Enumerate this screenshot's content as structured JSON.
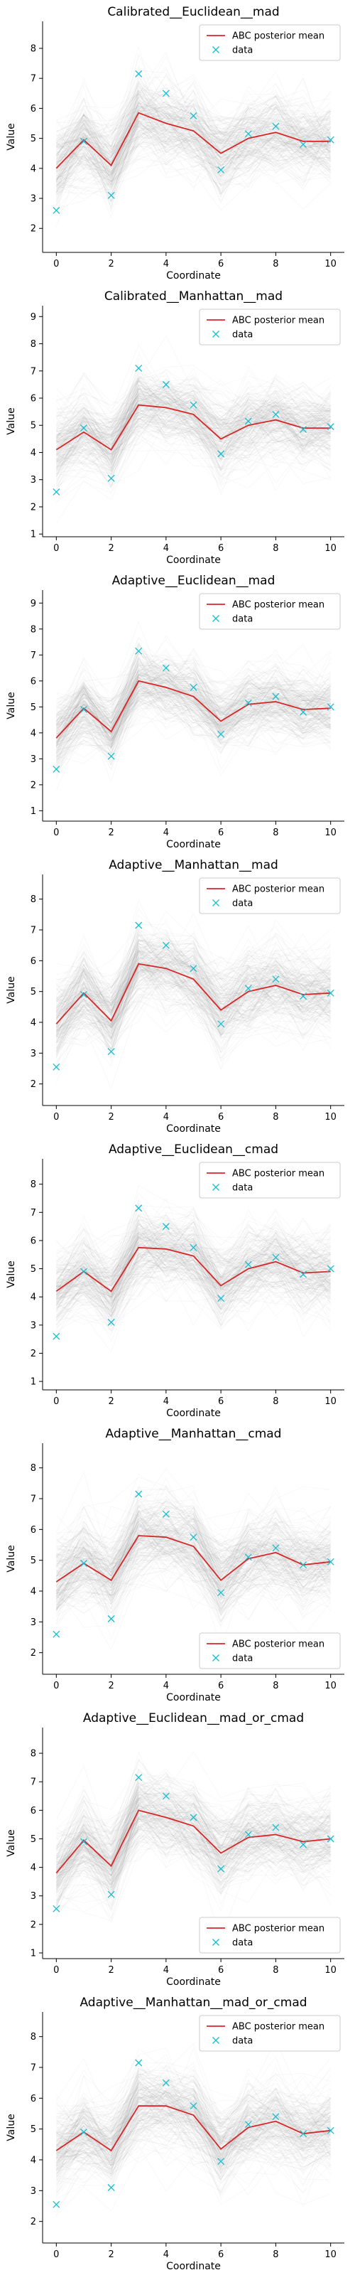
{
  "chart_data": [
    {
      "type": "line",
      "title": "Calibrated__Euclidean__mad",
      "xlabel": "Coordinate",
      "ylabel": "Value",
      "x": [
        0,
        1,
        2,
        3,
        4,
        5,
        6,
        7,
        8,
        9,
        10
      ],
      "ylim": [
        1.2,
        8.9
      ],
      "yticks": [
        2,
        3,
        4,
        5,
        6,
        7,
        8
      ],
      "xticks": [
        0,
        2,
        4,
        6,
        8,
        10
      ],
      "legend_position": "top-right",
      "series": [
        {
          "name": "ABC posterior mean",
          "color": "#d62728",
          "values": [
            4.0,
            4.95,
            4.1,
            5.85,
            5.5,
            5.25,
            4.5,
            5.0,
            5.2,
            4.9,
            4.9
          ]
        },
        {
          "name": "data",
          "color": "#17becf",
          "marker": "x",
          "values": [
            2.6,
            4.9,
            3.1,
            7.15,
            6.5,
            5.75,
            3.95,
            5.15,
            5.4,
            4.8,
            4.95
          ]
        }
      ]
    },
    {
      "type": "line",
      "title": "Calibrated__Manhattan__mad",
      "xlabel": "Coordinate",
      "ylabel": "Value",
      "x": [
        0,
        1,
        2,
        3,
        4,
        5,
        6,
        7,
        8,
        9,
        10
      ],
      "ylim": [
        0.9,
        9.4
      ],
      "yticks": [
        1,
        2,
        3,
        4,
        5,
        6,
        7,
        8,
        9
      ],
      "xticks": [
        0,
        2,
        4,
        6,
        8,
        10
      ],
      "legend_position": "top-right",
      "series": [
        {
          "name": "ABC posterior mean",
          "color": "#d62728",
          "values": [
            4.1,
            4.75,
            4.1,
            5.75,
            5.65,
            5.4,
            4.5,
            5.0,
            5.2,
            4.9,
            4.9
          ]
        },
        {
          "name": "data",
          "color": "#17becf",
          "marker": "x",
          "values": [
            2.55,
            4.9,
            3.05,
            7.1,
            6.5,
            5.75,
            3.95,
            5.15,
            5.4,
            4.85,
            4.95
          ]
        }
      ]
    },
    {
      "type": "line",
      "title": "Adaptive__Euclidean__mad",
      "xlabel": "Coordinate",
      "ylabel": "Value",
      "x": [
        0,
        1,
        2,
        3,
        4,
        5,
        6,
        7,
        8,
        9,
        10
      ],
      "ylim": [
        0.6,
        9.5
      ],
      "yticks": [
        1,
        2,
        3,
        4,
        5,
        6,
        7,
        8,
        9
      ],
      "xticks": [
        0,
        2,
        4,
        6,
        8,
        10
      ],
      "legend_position": "top-right",
      "series": [
        {
          "name": "ABC posterior mean",
          "color": "#d62728",
          "values": [
            3.8,
            4.95,
            4.05,
            6.0,
            5.75,
            5.4,
            4.45,
            5.1,
            5.2,
            4.9,
            4.95
          ]
        },
        {
          "name": "data",
          "color": "#17becf",
          "marker": "x",
          "values": [
            2.6,
            4.9,
            3.1,
            7.15,
            6.5,
            5.75,
            3.95,
            5.15,
            5.4,
            4.8,
            5.0
          ]
        }
      ]
    },
    {
      "type": "line",
      "title": "Adaptive__Manhattan__mad",
      "xlabel": "Coordinate",
      "ylabel": "Value",
      "x": [
        0,
        1,
        2,
        3,
        4,
        5,
        6,
        7,
        8,
        9,
        10
      ],
      "ylim": [
        1.3,
        8.8
      ],
      "yticks": [
        2,
        3,
        4,
        5,
        6,
        7,
        8
      ],
      "xticks": [
        0,
        2,
        4,
        6,
        8,
        10
      ],
      "legend_position": "top-right",
      "series": [
        {
          "name": "ABC posterior mean",
          "color": "#d62728",
          "values": [
            3.95,
            4.95,
            4.05,
            5.9,
            5.75,
            5.4,
            4.4,
            5.0,
            5.2,
            4.9,
            4.95
          ]
        },
        {
          "name": "data",
          "color": "#17becf",
          "marker": "x",
          "values": [
            2.55,
            4.9,
            3.05,
            7.15,
            6.5,
            5.75,
            3.95,
            5.1,
            5.4,
            4.85,
            4.95
          ]
        }
      ]
    },
    {
      "type": "line",
      "title": "Adaptive__Euclidean__cmad",
      "xlabel": "Coordinate",
      "ylabel": "Value",
      "x": [
        0,
        1,
        2,
        3,
        4,
        5,
        6,
        7,
        8,
        9,
        10
      ],
      "ylim": [
        0.7,
        8.9
      ],
      "yticks": [
        1,
        2,
        3,
        4,
        5,
        6,
        7,
        8
      ],
      "xticks": [
        0,
        2,
        4,
        6,
        8,
        10
      ],
      "legend_position": "top-right",
      "series": [
        {
          "name": "ABC posterior mean",
          "color": "#d62728",
          "values": [
            4.2,
            4.9,
            4.2,
            5.75,
            5.7,
            5.45,
            4.4,
            5.0,
            5.25,
            4.85,
            4.9
          ]
        },
        {
          "name": "data",
          "color": "#17becf",
          "marker": "x",
          "values": [
            2.6,
            4.9,
            3.1,
            7.15,
            6.5,
            5.75,
            3.95,
            5.15,
            5.4,
            4.8,
            5.0
          ]
        }
      ]
    },
    {
      "type": "line",
      "title": "Adaptive__Manhattan__cmad",
      "xlabel": "Coordinate",
      "ylabel": "Value",
      "x": [
        0,
        1,
        2,
        3,
        4,
        5,
        6,
        7,
        8,
        9,
        10
      ],
      "ylim": [
        1.3,
        8.8
      ],
      "yticks": [
        2,
        3,
        4,
        5,
        6,
        7,
        8
      ],
      "xticks": [
        0,
        2,
        4,
        6,
        8,
        10
      ],
      "legend_position": "bottom-right",
      "series": [
        {
          "name": "ABC posterior mean",
          "color": "#d62728",
          "values": [
            4.3,
            4.9,
            4.35,
            5.8,
            5.75,
            5.45,
            4.35,
            5.05,
            5.25,
            4.85,
            4.95
          ]
        },
        {
          "name": "data",
          "color": "#17becf",
          "marker": "x",
          "values": [
            2.6,
            4.9,
            3.1,
            7.15,
            6.5,
            5.75,
            3.95,
            5.1,
            5.4,
            4.85,
            4.95
          ]
        }
      ]
    },
    {
      "type": "line",
      "title": "Adaptive__Euclidean__mad_or_cmad",
      "xlabel": "Coordinate",
      "ylabel": "Value",
      "x": [
        0,
        1,
        2,
        3,
        4,
        5,
        6,
        7,
        8,
        9,
        10
      ],
      "ylim": [
        0.8,
        8.9
      ],
      "yticks": [
        1,
        2,
        3,
        4,
        5,
        6,
        7,
        8
      ],
      "xticks": [
        0,
        2,
        4,
        6,
        8,
        10
      ],
      "legend_position": "bottom-right",
      "series": [
        {
          "name": "ABC posterior mean",
          "color": "#d62728",
          "values": [
            3.8,
            4.95,
            4.05,
            6.0,
            5.75,
            5.45,
            4.5,
            5.05,
            5.15,
            4.9,
            5.0
          ]
        },
        {
          "name": "data",
          "color": "#17becf",
          "marker": "x",
          "values": [
            2.55,
            4.9,
            3.05,
            7.15,
            6.5,
            5.75,
            3.95,
            5.15,
            5.4,
            4.8,
            5.0
          ]
        }
      ]
    },
    {
      "type": "line",
      "title": "Adaptive__Manhattan__mad_or_cmad",
      "xlabel": "Coordinate",
      "ylabel": "Value",
      "x": [
        0,
        1,
        2,
        3,
        4,
        5,
        6,
        7,
        8,
        9,
        10
      ],
      "ylim": [
        1.3,
        8.8
      ],
      "yticks": [
        2,
        3,
        4,
        5,
        6,
        7,
        8
      ],
      "xticks": [
        0,
        2,
        4,
        6,
        8,
        10
      ],
      "legend_position": "top-right",
      "series": [
        {
          "name": "ABC posterior mean",
          "color": "#d62728",
          "values": [
            4.3,
            4.9,
            4.3,
            5.75,
            5.75,
            5.45,
            4.35,
            5.05,
            5.25,
            4.85,
            4.95
          ]
        },
        {
          "name": "data",
          "color": "#17becf",
          "marker": "x",
          "values": [
            2.55,
            4.9,
            3.1,
            7.15,
            6.5,
            5.75,
            3.95,
            5.15,
            5.4,
            4.85,
            4.95
          ]
        }
      ]
    }
  ]
}
